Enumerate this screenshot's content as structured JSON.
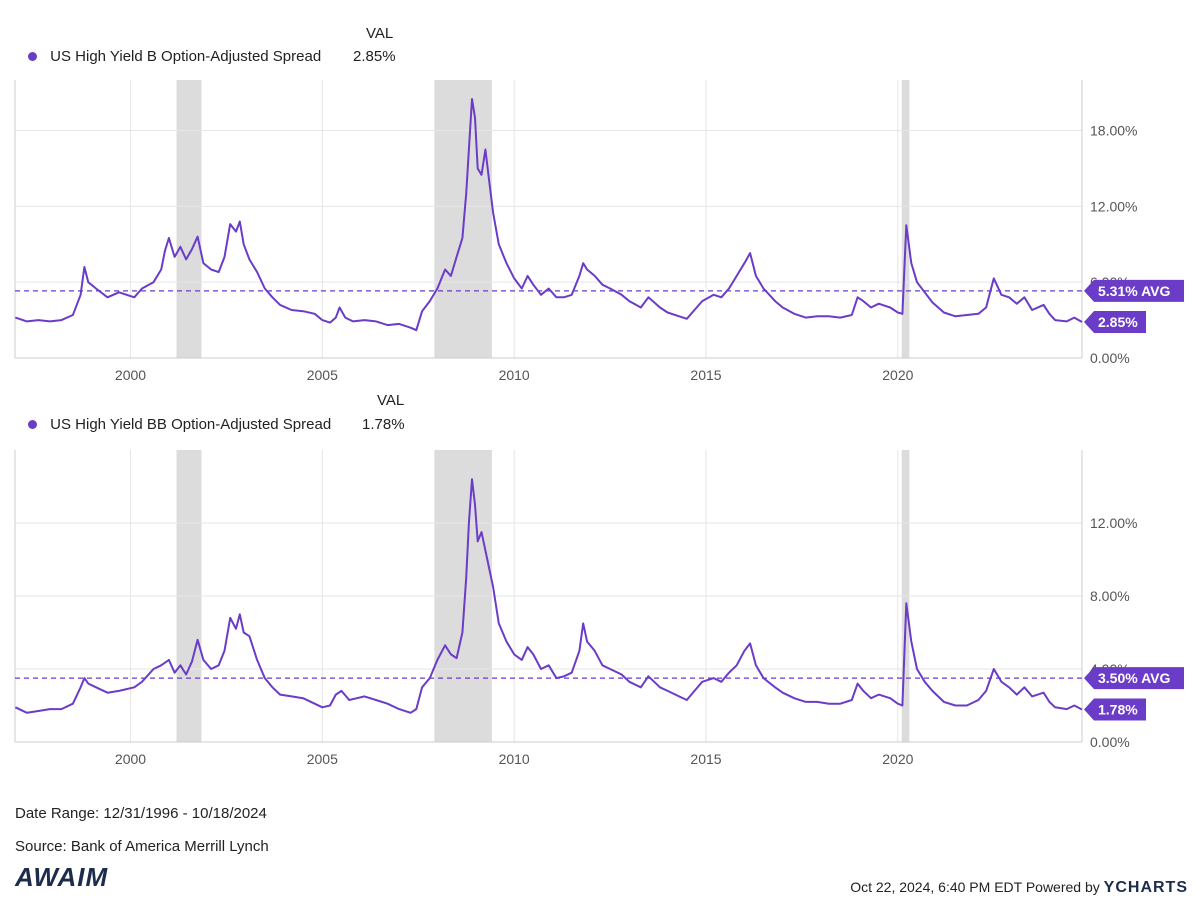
{
  "colors": {
    "series": "#6a3cc7",
    "recession": "#dcdcdc",
    "grid": "#e6e6e6",
    "label_bg": "#6a3cc7"
  },
  "legend_header": "VAL",
  "date_range": "Date Range: 12/31/1996 - 10/18/2024",
  "source": "Source: Bank of America Merrill Lynch",
  "logo_text": "AWAIM",
  "timestamp": "Oct 22, 2024, 6:40 PM EDT Powered by",
  "brand": "YCHARTS",
  "chart_data": [
    {
      "type": "line",
      "series": [
        {
          "name": "US High Yield B Option-Adjusted Spread",
          "value_label": "2.85%"
        }
      ],
      "x_ticks": [
        "2000",
        "2005",
        "2010",
        "2015",
        "2020"
      ],
      "y_ticks": [
        "0.00%",
        "6.00%",
        "12.00%",
        "18.00%"
      ],
      "ylim": [
        0,
        22
      ],
      "xlim": [
        1996.99,
        2024.8
      ],
      "avg": 5.31,
      "avg_label": "5.31% AVG",
      "last": 2.85,
      "last_label": "2.85%",
      "recessions": [
        [
          2001.2,
          2001.85
        ],
        [
          2007.92,
          2009.42
        ],
        [
          2020.1,
          2020.3
        ]
      ],
      "points": [
        [
          1997.0,
          3.2
        ],
        [
          1997.3,
          2.9
        ],
        [
          1997.6,
          3.0
        ],
        [
          1997.9,
          2.9
        ],
        [
          1998.2,
          3.0
        ],
        [
          1998.5,
          3.4
        ],
        [
          1998.7,
          5.0
        ],
        [
          1998.8,
          7.2
        ],
        [
          1998.9,
          6.0
        ],
        [
          1999.1,
          5.5
        ],
        [
          1999.4,
          4.8
        ],
        [
          1999.7,
          5.2
        ],
        [
          1999.9,
          5.0
        ],
        [
          2000.1,
          4.8
        ],
        [
          2000.3,
          5.5
        ],
        [
          2000.6,
          6.0
        ],
        [
          2000.8,
          7.0
        ],
        [
          2000.9,
          8.5
        ],
        [
          2001.0,
          9.5
        ],
        [
          2001.15,
          8.0
        ],
        [
          2001.3,
          8.8
        ],
        [
          2001.45,
          7.8
        ],
        [
          2001.6,
          8.6
        ],
        [
          2001.75,
          9.6
        ],
        [
          2001.9,
          7.5
        ],
        [
          2002.1,
          7.0
        ],
        [
          2002.3,
          6.8
        ],
        [
          2002.45,
          8.0
        ],
        [
          2002.6,
          10.6
        ],
        [
          2002.75,
          10.0
        ],
        [
          2002.85,
          10.8
        ],
        [
          2002.95,
          9.0
        ],
        [
          2003.1,
          7.8
        ],
        [
          2003.3,
          6.8
        ],
        [
          2003.5,
          5.5
        ],
        [
          2003.7,
          4.8
        ],
        [
          2003.9,
          4.2
        ],
        [
          2004.2,
          3.8
        ],
        [
          2004.5,
          3.7
        ],
        [
          2004.8,
          3.5
        ],
        [
          2005.0,
          3.0
        ],
        [
          2005.2,
          2.8
        ],
        [
          2005.35,
          3.2
        ],
        [
          2005.45,
          4.0
        ],
        [
          2005.6,
          3.2
        ],
        [
          2005.8,
          2.9
        ],
        [
          2006.1,
          3.0
        ],
        [
          2006.4,
          2.9
        ],
        [
          2006.7,
          2.6
        ],
        [
          2007.0,
          2.7
        ],
        [
          2007.3,
          2.4
        ],
        [
          2007.45,
          2.2
        ],
        [
          2007.6,
          3.7
        ],
        [
          2007.8,
          4.5
        ],
        [
          2008.0,
          5.5
        ],
        [
          2008.2,
          7.0
        ],
        [
          2008.35,
          6.5
        ],
        [
          2008.5,
          8.0
        ],
        [
          2008.65,
          9.5
        ],
        [
          2008.75,
          13.0
        ],
        [
          2008.82,
          16.5
        ],
        [
          2008.9,
          20.5
        ],
        [
          2008.98,
          19.0
        ],
        [
          2009.05,
          15.0
        ],
        [
          2009.15,
          14.5
        ],
        [
          2009.25,
          16.5
        ],
        [
          2009.35,
          14.0
        ],
        [
          2009.45,
          11.5
        ],
        [
          2009.6,
          9.0
        ],
        [
          2009.8,
          7.5
        ],
        [
          2010.0,
          6.3
        ],
        [
          2010.2,
          5.5
        ],
        [
          2010.35,
          6.5
        ],
        [
          2010.5,
          5.8
        ],
        [
          2010.7,
          5.0
        ],
        [
          2010.9,
          5.5
        ],
        [
          2011.1,
          4.8
        ],
        [
          2011.3,
          4.8
        ],
        [
          2011.5,
          5.0
        ],
        [
          2011.7,
          6.5
        ],
        [
          2011.8,
          7.5
        ],
        [
          2011.9,
          7.0
        ],
        [
          2012.1,
          6.5
        ],
        [
          2012.3,
          5.8
        ],
        [
          2012.5,
          5.5
        ],
        [
          2012.8,
          5.0
        ],
        [
          2013.0,
          4.5
        ],
        [
          2013.3,
          4.0
        ],
        [
          2013.5,
          4.8
        ],
        [
          2013.8,
          4.0
        ],
        [
          2014.0,
          3.6
        ],
        [
          2014.3,
          3.3
        ],
        [
          2014.5,
          3.1
        ],
        [
          2014.7,
          3.8
        ],
        [
          2014.9,
          4.5
        ],
        [
          2015.2,
          5.0
        ],
        [
          2015.4,
          4.8
        ],
        [
          2015.6,
          5.5
        ],
        [
          2015.8,
          6.5
        ],
        [
          2016.0,
          7.5
        ],
        [
          2016.15,
          8.3
        ],
        [
          2016.3,
          6.5
        ],
        [
          2016.5,
          5.5
        ],
        [
          2016.8,
          4.5
        ],
        [
          2017.0,
          4.0
        ],
        [
          2017.3,
          3.5
        ],
        [
          2017.6,
          3.2
        ],
        [
          2017.9,
          3.3
        ],
        [
          2018.2,
          3.3
        ],
        [
          2018.5,
          3.2
        ],
        [
          2018.8,
          3.4
        ],
        [
          2018.95,
          4.8
        ],
        [
          2019.1,
          4.5
        ],
        [
          2019.3,
          4.0
        ],
        [
          2019.5,
          4.3
        ],
        [
          2019.8,
          4.0
        ],
        [
          2020.0,
          3.6
        ],
        [
          2020.12,
          3.5
        ],
        [
          2020.22,
          10.5
        ],
        [
          2020.35,
          7.5
        ],
        [
          2020.5,
          6.0
        ],
        [
          2020.7,
          5.2
        ],
        [
          2020.9,
          4.4
        ],
        [
          2021.2,
          3.6
        ],
        [
          2021.5,
          3.3
        ],
        [
          2021.8,
          3.4
        ],
        [
          2022.1,
          3.5
        ],
        [
          2022.3,
          4.0
        ],
        [
          2022.5,
          6.3
        ],
        [
          2022.7,
          5.0
        ],
        [
          2022.9,
          4.8
        ],
        [
          2023.1,
          4.3
        ],
        [
          2023.3,
          4.8
        ],
        [
          2023.5,
          3.8
        ],
        [
          2023.8,
          4.2
        ],
        [
          2023.95,
          3.5
        ],
        [
          2024.1,
          3.0
        ],
        [
          2024.4,
          2.9
        ],
        [
          2024.6,
          3.2
        ],
        [
          2024.8,
          2.85
        ]
      ]
    },
    {
      "type": "line",
      "series": [
        {
          "name": "US High Yield BB Option-Adjusted Spread",
          "value_label": "1.78%"
        }
      ],
      "x_ticks": [
        "2000",
        "2005",
        "2010",
        "2015",
        "2020"
      ],
      "y_ticks": [
        "0.00%",
        "4.00%",
        "8.00%",
        "12.00%"
      ],
      "ylim": [
        0,
        16
      ],
      "xlim": [
        1996.99,
        2024.8
      ],
      "avg": 3.5,
      "avg_label": "3.50% AVG",
      "last": 1.78,
      "last_label": "1.78%",
      "recessions": [
        [
          2001.2,
          2001.85
        ],
        [
          2007.92,
          2009.42
        ],
        [
          2020.1,
          2020.3
        ]
      ],
      "points": [
        [
          1997.0,
          1.9
        ],
        [
          1997.3,
          1.6
        ],
        [
          1997.6,
          1.7
        ],
        [
          1997.9,
          1.8
        ],
        [
          1998.2,
          1.8
        ],
        [
          1998.5,
          2.1
        ],
        [
          1998.7,
          3.0
        ],
        [
          1998.8,
          3.5
        ],
        [
          1998.9,
          3.2
        ],
        [
          1999.1,
          3.0
        ],
        [
          1999.4,
          2.7
        ],
        [
          1999.7,
          2.8
        ],
        [
          1999.9,
          2.9
        ],
        [
          2000.1,
          3.0
        ],
        [
          2000.3,
          3.3
        ],
        [
          2000.6,
          4.0
        ],
        [
          2000.8,
          4.2
        ],
        [
          2001.0,
          4.5
        ],
        [
          2001.15,
          3.8
        ],
        [
          2001.3,
          4.2
        ],
        [
          2001.45,
          3.7
        ],
        [
          2001.6,
          4.4
        ],
        [
          2001.75,
          5.6
        ],
        [
          2001.9,
          4.5
        ],
        [
          2002.1,
          4.0
        ],
        [
          2002.3,
          4.2
        ],
        [
          2002.45,
          5.0
        ],
        [
          2002.6,
          6.8
        ],
        [
          2002.75,
          6.2
        ],
        [
          2002.85,
          7.0
        ],
        [
          2002.95,
          6.0
        ],
        [
          2003.1,
          5.8
        ],
        [
          2003.3,
          4.5
        ],
        [
          2003.5,
          3.5
        ],
        [
          2003.7,
          3.0
        ],
        [
          2003.9,
          2.6
        ],
        [
          2004.2,
          2.5
        ],
        [
          2004.5,
          2.4
        ],
        [
          2004.8,
          2.1
        ],
        [
          2005.0,
          1.9
        ],
        [
          2005.2,
          2.0
        ],
        [
          2005.35,
          2.6
        ],
        [
          2005.5,
          2.8
        ],
        [
          2005.7,
          2.3
        ],
        [
          2005.9,
          2.4
        ],
        [
          2006.1,
          2.5
        ],
        [
          2006.4,
          2.3
        ],
        [
          2006.7,
          2.1
        ],
        [
          2007.0,
          1.8
        ],
        [
          2007.3,
          1.6
        ],
        [
          2007.45,
          1.8
        ],
        [
          2007.6,
          3.0
        ],
        [
          2007.8,
          3.5
        ],
        [
          2008.0,
          4.5
        ],
        [
          2008.2,
          5.3
        ],
        [
          2008.35,
          4.8
        ],
        [
          2008.5,
          4.6
        ],
        [
          2008.65,
          6.0
        ],
        [
          2008.75,
          9.0
        ],
        [
          2008.82,
          12.0
        ],
        [
          2008.9,
          14.4
        ],
        [
          2008.98,
          13.0
        ],
        [
          2009.05,
          11.0
        ],
        [
          2009.15,
          11.5
        ],
        [
          2009.3,
          10.0
        ],
        [
          2009.45,
          8.5
        ],
        [
          2009.6,
          6.5
        ],
        [
          2009.8,
          5.5
        ],
        [
          2010.0,
          4.8
        ],
        [
          2010.2,
          4.5
        ],
        [
          2010.35,
          5.2
        ],
        [
          2010.5,
          4.8
        ],
        [
          2010.7,
          4.0
        ],
        [
          2010.9,
          4.2
        ],
        [
          2011.1,
          3.5
        ],
        [
          2011.3,
          3.6
        ],
        [
          2011.5,
          3.8
        ],
        [
          2011.7,
          5.0
        ],
        [
          2011.8,
          6.5
        ],
        [
          2011.9,
          5.5
        ],
        [
          2012.1,
          5.0
        ],
        [
          2012.3,
          4.2
        ],
        [
          2012.5,
          4.0
        ],
        [
          2012.8,
          3.7
        ],
        [
          2013.0,
          3.3
        ],
        [
          2013.3,
          3.0
        ],
        [
          2013.5,
          3.6
        ],
        [
          2013.8,
          3.0
        ],
        [
          2014.0,
          2.8
        ],
        [
          2014.3,
          2.5
        ],
        [
          2014.5,
          2.3
        ],
        [
          2014.7,
          2.8
        ],
        [
          2014.9,
          3.3
        ],
        [
          2015.2,
          3.5
        ],
        [
          2015.4,
          3.3
        ],
        [
          2015.6,
          3.8
        ],
        [
          2015.8,
          4.2
        ],
        [
          2016.0,
          5.0
        ],
        [
          2016.15,
          5.4
        ],
        [
          2016.3,
          4.2
        ],
        [
          2016.5,
          3.5
        ],
        [
          2016.8,
          3.0
        ],
        [
          2017.0,
          2.7
        ],
        [
          2017.3,
          2.4
        ],
        [
          2017.6,
          2.2
        ],
        [
          2017.9,
          2.2
        ],
        [
          2018.2,
          2.1
        ],
        [
          2018.5,
          2.1
        ],
        [
          2018.8,
          2.3
        ],
        [
          2018.95,
          3.2
        ],
        [
          2019.1,
          2.8
        ],
        [
          2019.3,
          2.4
        ],
        [
          2019.5,
          2.6
        ],
        [
          2019.8,
          2.4
        ],
        [
          2020.0,
          2.1
        ],
        [
          2020.12,
          2.0
        ],
        [
          2020.22,
          7.6
        ],
        [
          2020.35,
          5.5
        ],
        [
          2020.5,
          4.0
        ],
        [
          2020.7,
          3.3
        ],
        [
          2020.9,
          2.8
        ],
        [
          2021.2,
          2.2
        ],
        [
          2021.5,
          2.0
        ],
        [
          2021.8,
          2.0
        ],
        [
          2022.1,
          2.3
        ],
        [
          2022.3,
          2.8
        ],
        [
          2022.5,
          4.0
        ],
        [
          2022.7,
          3.3
        ],
        [
          2022.9,
          3.0
        ],
        [
          2023.1,
          2.6
        ],
        [
          2023.3,
          3.0
        ],
        [
          2023.5,
          2.5
        ],
        [
          2023.8,
          2.7
        ],
        [
          2023.95,
          2.2
        ],
        [
          2024.1,
          1.9
        ],
        [
          2024.4,
          1.8
        ],
        [
          2024.6,
          2.0
        ],
        [
          2024.8,
          1.78
        ]
      ]
    }
  ]
}
